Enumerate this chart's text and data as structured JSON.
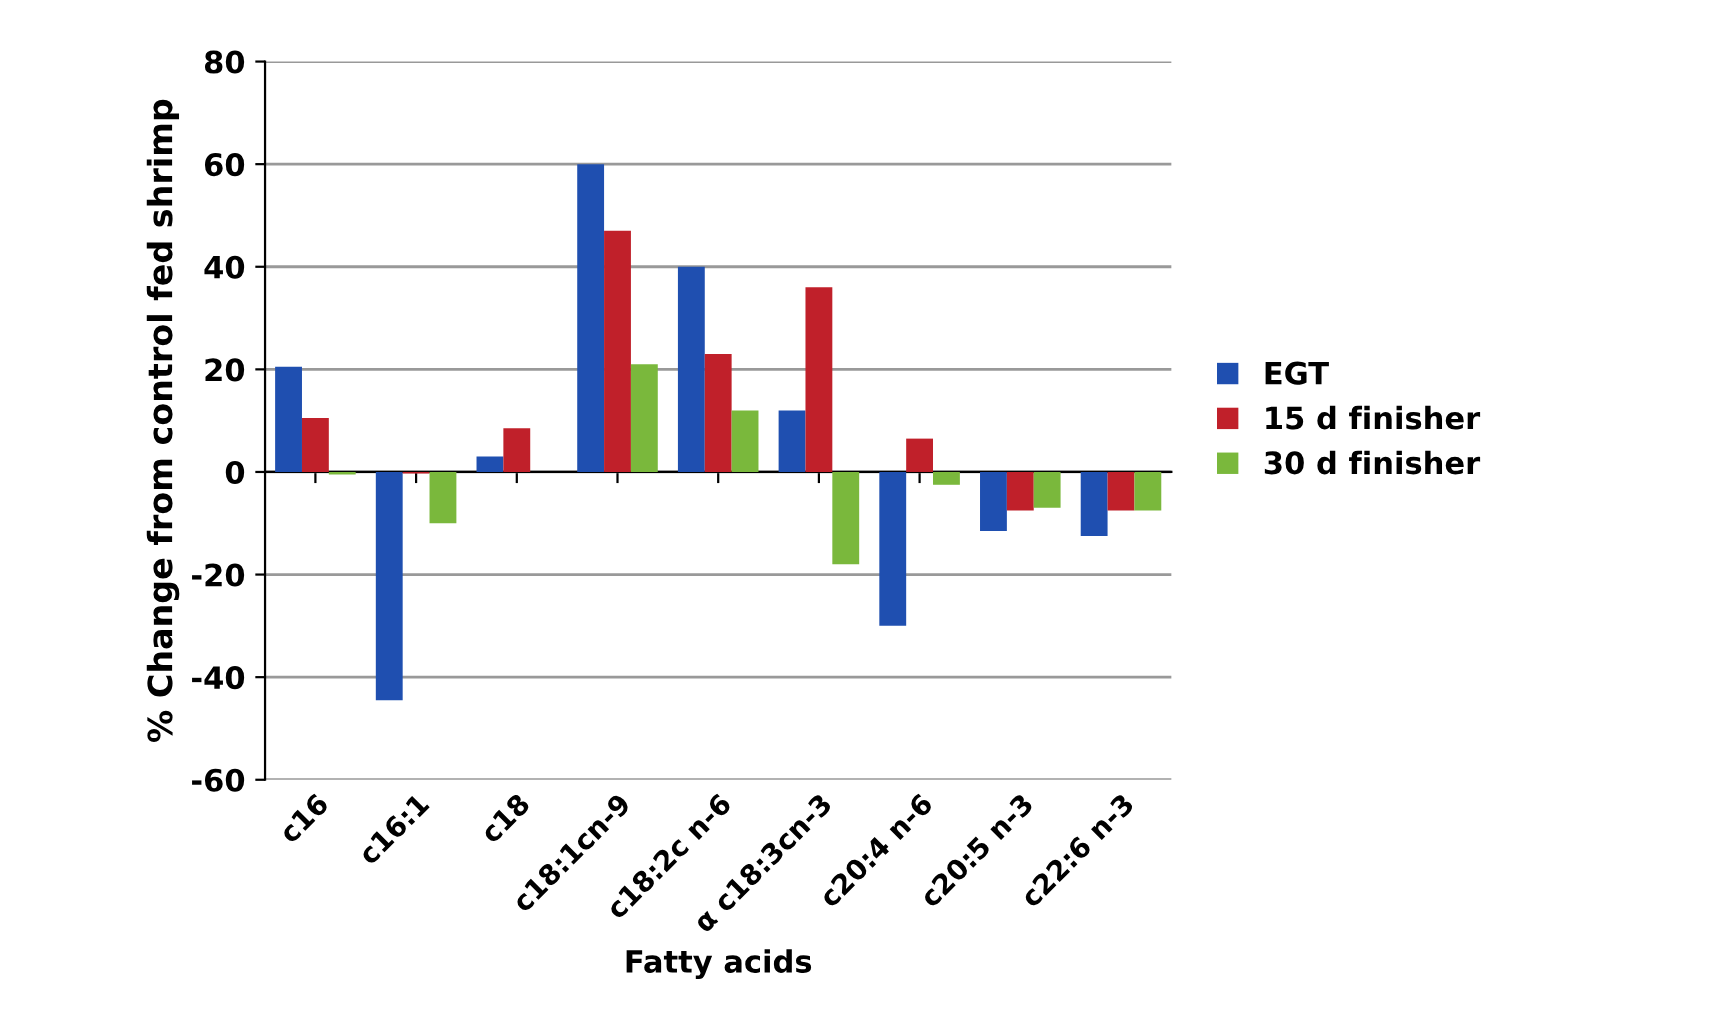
{
  "chart_data": {
    "type": "bar",
    "xlabel": "Fatty acids",
    "ylabel": "% Change from control fed shrimp",
    "categories": [
      "c16",
      "c16:1",
      "c18",
      "c18:1cn-9",
      "c18:2c n-6",
      "α c18:3cn-3",
      "c20:4 n-6",
      "c20:5 n-3",
      "c22:6 n-3"
    ],
    "series": [
      {
        "name": "EGT",
        "color": "#1f4fb0",
        "values": [
          20.5,
          -44.5,
          3,
          60,
          40,
          12,
          -30,
          -11.5,
          -12.5
        ]
      },
      {
        "name": "15 d finisher",
        "color": "#c0202a",
        "values": [
          10.5,
          -0.3,
          8.5,
          47,
          23,
          36,
          6.5,
          -7.5,
          -7.5
        ]
      },
      {
        "name": "30 d finisher",
        "color": "#7ab83c",
        "values": [
          -0.5,
          -10,
          0,
          21,
          12,
          -18,
          -2.5,
          -7,
          -7.5
        ]
      }
    ],
    "ylim": [
      -60,
      80
    ],
    "yticks": [
      -60,
      -40,
      -20,
      0,
      20,
      40,
      60,
      80
    ],
    "grid": "y",
    "legend": "right"
  }
}
